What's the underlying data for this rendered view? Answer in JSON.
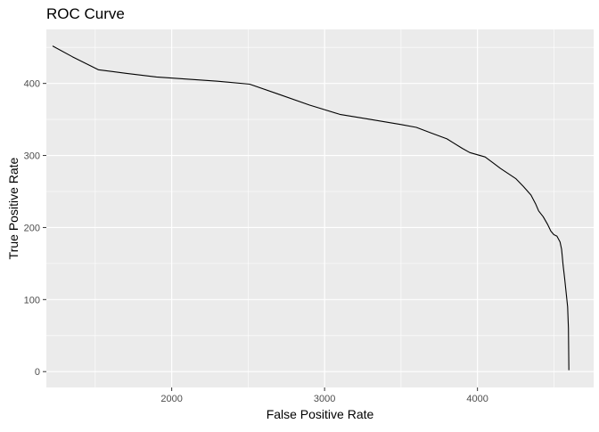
{
  "chart_data": {
    "type": "line",
    "title": "ROC Curve",
    "xlabel": "False Positive Rate",
    "ylabel": "True Positive Rate",
    "xlim": [
      1180,
      4760
    ],
    "ylim": [
      -22,
      475
    ],
    "x_ticks": [
      2000,
      3000,
      4000
    ],
    "y_ticks": [
      0,
      100,
      200,
      300,
      400
    ],
    "grid": true,
    "background": "#EBEBEB",
    "grid_color": "#FFFFFF",
    "line_color": "#000000",
    "series": [
      {
        "x": [
          1221,
          1350,
          1520,
          1700,
          1900,
          2100,
          2300,
          2510,
          2700,
          2900,
          3100,
          3300,
          3500,
          3600,
          3700,
          3800,
          3900,
          3950,
          4050,
          4100,
          4150,
          4250,
          4300,
          4350,
          4380,
          4400,
          4430,
          4460,
          4480,
          4500,
          4520,
          4540,
          4550,
          4555,
          4560,
          4570,
          4580,
          4590,
          4595,
          4598
        ],
        "y": [
          452,
          437,
          419,
          414,
          409,
          406,
          403,
          399,
          385,
          370,
          357,
          350,
          343,
          339,
          331,
          323,
          310,
          304,
          298,
          290,
          282,
          268,
          257,
          245,
          233,
          223,
          215,
          204,
          195,
          190,
          188,
          180,
          170,
          160,
          148,
          130,
          110,
          90,
          60,
          2
        ]
      }
    ]
  }
}
